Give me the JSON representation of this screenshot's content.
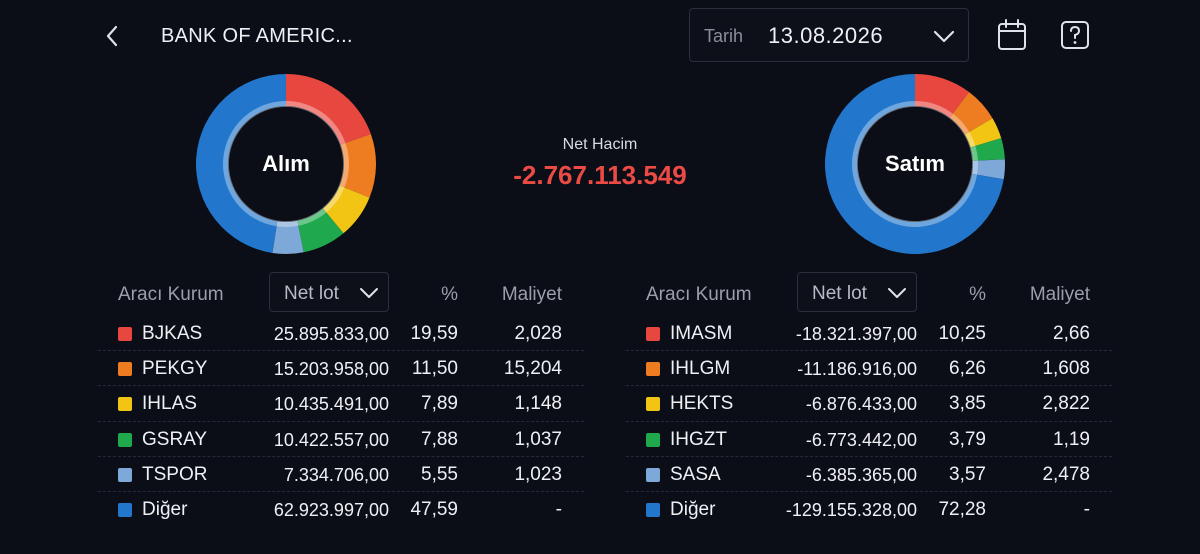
{
  "header": {
    "title": "BANK OF AMERIC...",
    "date_label": "Tarih",
    "date_value": "13.08.2026"
  },
  "summary": {
    "net_label": "Net Hacim",
    "net_value": "-2.767.113.549",
    "net_color": "#ec4a45"
  },
  "colors": {
    "red": "#e8473f",
    "orange": "#ee7d22",
    "yellow": "#f2c515",
    "green": "#20a84c",
    "lightblue": "#7ea8d8",
    "blue": "#2277cc"
  },
  "buy": {
    "label": "Alım",
    "columns": {
      "broker": "Aracı Kurum",
      "select": "Net lot",
      "pct": "%",
      "cost": "Maliyet"
    },
    "rows": [
      {
        "name": "BJKAS",
        "lot": "25.895.833,00",
        "pct": "19,59",
        "cost": "2,028",
        "pct_value": 19.59,
        "color": "#e8473f"
      },
      {
        "name": "PEKGY",
        "lot": "15.203.958,00",
        "pct": "11,50",
        "cost": "15,204",
        "pct_value": 11.5,
        "color": "#ee7d22"
      },
      {
        "name": "IHLAS",
        "lot": "10.435.491,00",
        "pct": "7,89",
        "cost": "1,148",
        "pct_value": 7.89,
        "color": "#f2c515"
      },
      {
        "name": "GSRAY",
        "lot": "10.422.557,00",
        "pct": "7,88",
        "cost": "1,037",
        "pct_value": 7.88,
        "color": "#20a84c"
      },
      {
        "name": "TSPOR",
        "lot": "7.334.706,00",
        "pct": "5,55",
        "cost": "1,023",
        "pct_value": 5.55,
        "color": "#7ea8d8"
      },
      {
        "name": "Diğer",
        "lot": "62.923.997,00",
        "pct": "47,59",
        "cost": "-",
        "pct_value": 47.59,
        "color": "#2277cc"
      }
    ]
  },
  "sell": {
    "label": "Satım",
    "columns": {
      "broker": "Aracı Kurum",
      "select": "Net lot",
      "pct": "%",
      "cost": "Maliyet"
    },
    "rows": [
      {
        "name": "IMASM",
        "lot": "-18.321.397,00",
        "pct": "10,25",
        "cost": "2,66",
        "pct_value": 10.25,
        "color": "#e8473f"
      },
      {
        "name": "IHLGM",
        "lot": "-11.186.916,00",
        "pct": "6,26",
        "cost": "1,608",
        "pct_value": 6.26,
        "color": "#ee7d22"
      },
      {
        "name": "HEKTS",
        "lot": "-6.876.433,00",
        "pct": "3,85",
        "cost": "2,822",
        "pct_value": 3.85,
        "color": "#f2c515"
      },
      {
        "name": "IHGZT",
        "lot": "-6.773.442,00",
        "pct": "3,79",
        "cost": "1,19",
        "pct_value": 3.79,
        "color": "#20a84c"
      },
      {
        "name": "SASA",
        "lot": "-6.385.365,00",
        "pct": "3,57",
        "cost": "2,478",
        "pct_value": 3.57,
        "color": "#7ea8d8"
      },
      {
        "name": "Diğer",
        "lot": "-129.155.328,00",
        "pct": "72,28",
        "cost": "-",
        "pct_value": 72.28,
        "color": "#2277cc"
      }
    ]
  },
  "icons": {
    "back": "chevron-left-icon",
    "date": "chevron-down-icon",
    "calendar": "calendar-icon",
    "help": "help-icon"
  }
}
